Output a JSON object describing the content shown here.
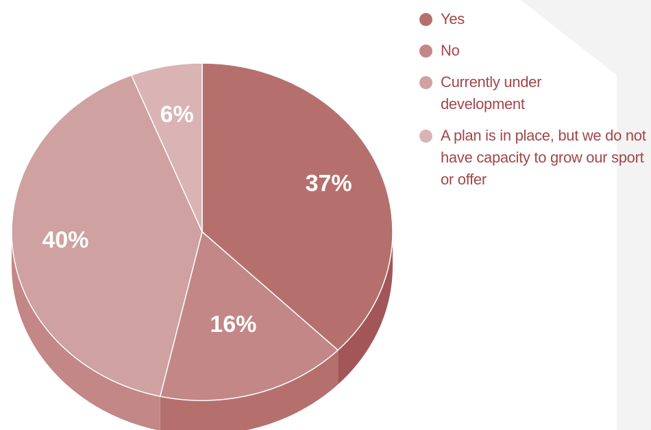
{
  "chart_data": {
    "type": "pie",
    "style": "3d",
    "slices": [
      {
        "label": "Yes",
        "value": 37,
        "display": "37%",
        "color": "#b5706e",
        "side_color": "#a35657"
      },
      {
        "label": "No",
        "value": 16,
        "display": "16%",
        "color": "#c28786",
        "side_color": "#b5706e"
      },
      {
        "label": "Currently under development",
        "value": 40,
        "display": "40%",
        "color": "#cfa1a1",
        "side_color": "#c28786"
      },
      {
        "label": "A plan is in place, but we do not have capacity to grow our sport or offer",
        "value": 6,
        "display": "6%",
        "color": "#dab3b4",
        "side_color": "#c28786"
      }
    ],
    "legend": {
      "placement": "right",
      "entries": [
        {
          "label": "Yes",
          "color": "#b5706e"
        },
        {
          "label": "No",
          "color": "#c28786"
        },
        {
          "label": "Currently under development",
          "color": "#cfa1a1"
        },
        {
          "label": "A plan is in place, but we do not have capacity to grow our sport or offer",
          "color": "#dab3b4"
        }
      ]
    }
  }
}
